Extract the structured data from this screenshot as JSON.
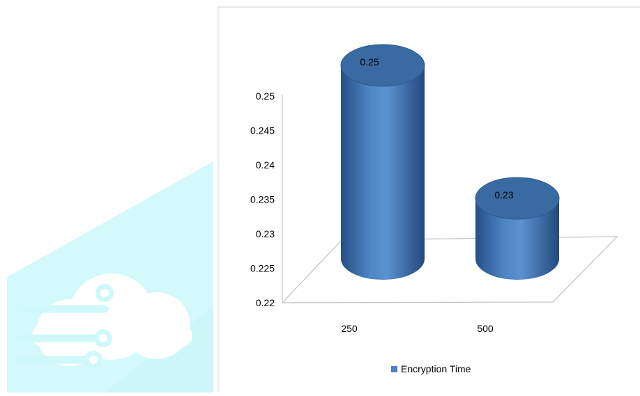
{
  "chart_data": {
    "type": "bar",
    "style": "3d-cylinder",
    "categories": [
      "250",
      "500"
    ],
    "series": [
      {
        "name": "Encryption Time",
        "values": [
          0.25,
          0.23
        ]
      }
    ],
    "data_labels": [
      "0.25",
      "0.23"
    ],
    "y_ticks": [
      "0.25",
      "0.245",
      "0.24",
      "0.235",
      "0.23",
      "0.225",
      "0.22"
    ],
    "ylim": [
      0.22,
      0.25
    ],
    "title": "",
    "xlabel": "",
    "ylabel": "",
    "grid": false,
    "legend_position": "bottom",
    "legend": {
      "label": "Encryption Time"
    },
    "colors": {
      "bar": "#4f81bd",
      "bar_dark": "#1f4a7d",
      "bar_top": "#3a6aa2",
      "axis": "#bfbfbf",
      "watermark": "#cff8fb"
    }
  },
  "watermark_icon": "cloud-circuit-logo"
}
